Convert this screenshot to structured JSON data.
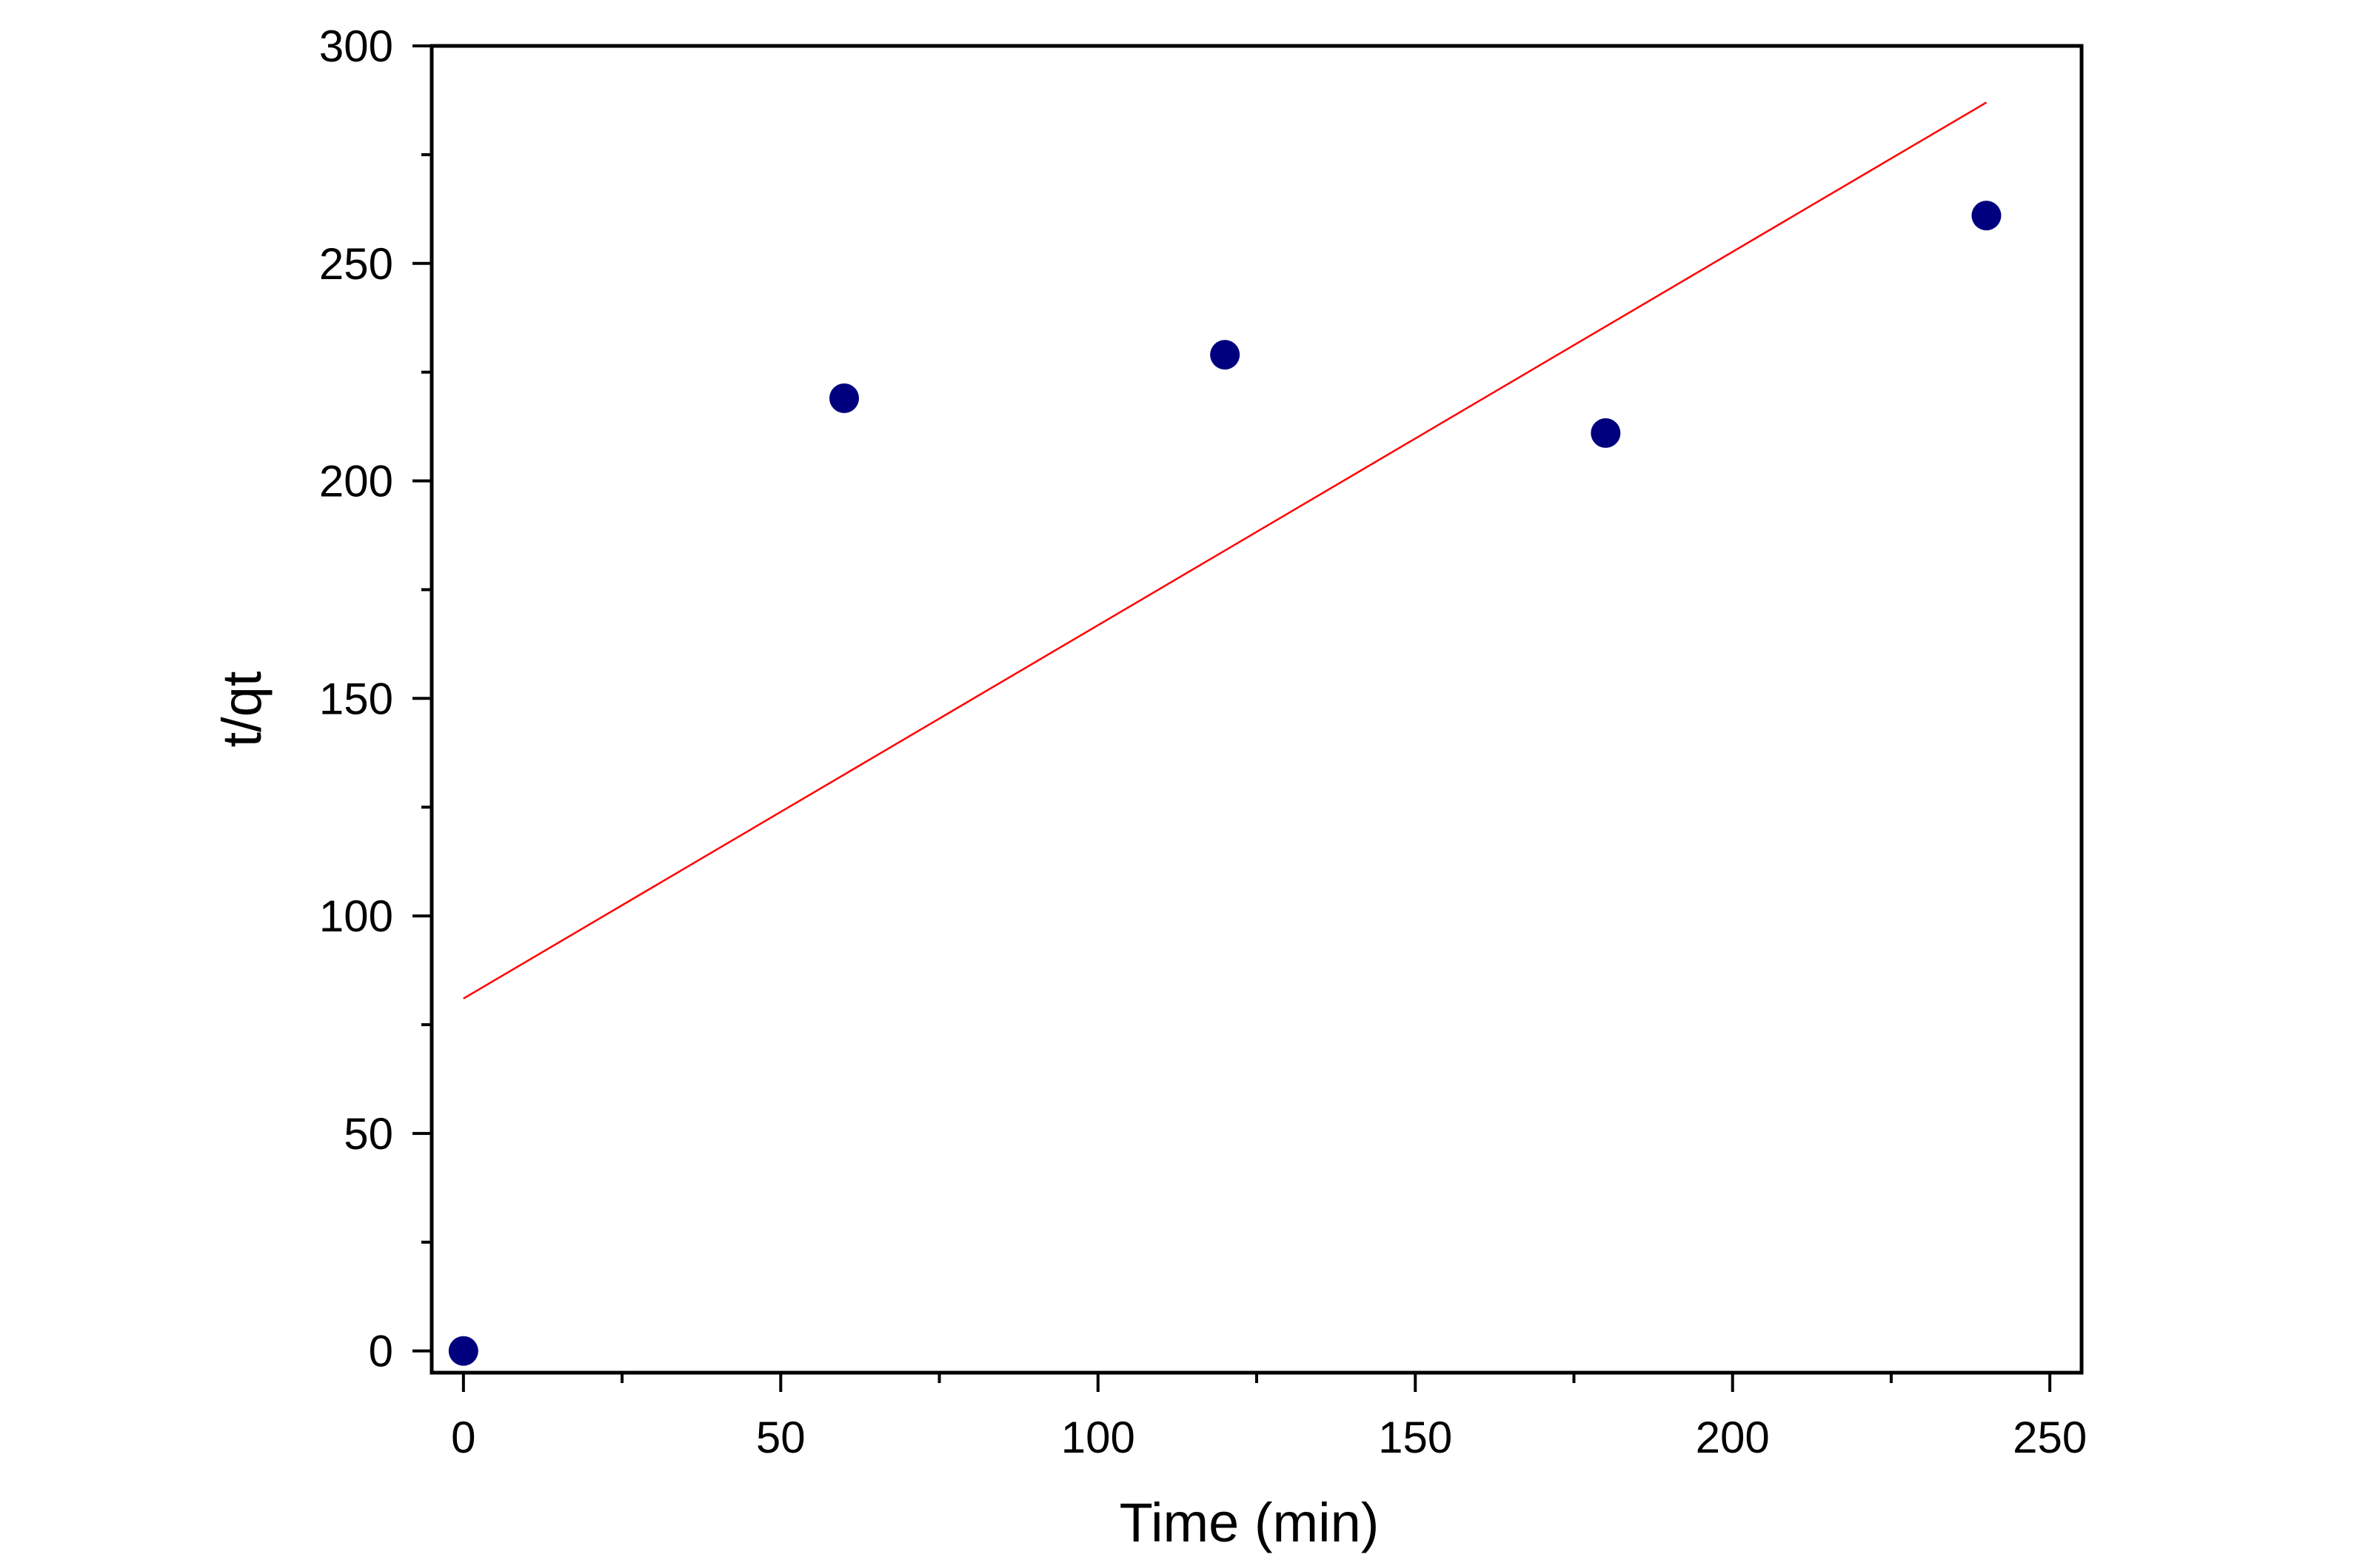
{
  "chart_data": {
    "type": "scatter",
    "title": "",
    "xlabel": "Time (min)",
    "ylabel": "t/qt",
    "xlim": [
      -5,
      255
    ],
    "ylim": [
      -5,
      300
    ],
    "x_ticks": [
      0,
      50,
      100,
      150,
      200,
      250
    ],
    "y_ticks": [
      0,
      50,
      100,
      150,
      200,
      250,
      300
    ],
    "x_minor_step": 25,
    "y_minor_step": 25,
    "grid": false,
    "legend": "none",
    "series": [
      {
        "kind": "scatter",
        "color": "#00007f",
        "x": [
          0,
          60,
          120,
          180,
          240
        ],
        "y": [
          0,
          219,
          229,
          211,
          261
        ]
      },
      {
        "kind": "fit-line",
        "color": "#ff0000",
        "x": [
          0,
          240
        ],
        "y": [
          81,
          287
        ]
      }
    ]
  }
}
